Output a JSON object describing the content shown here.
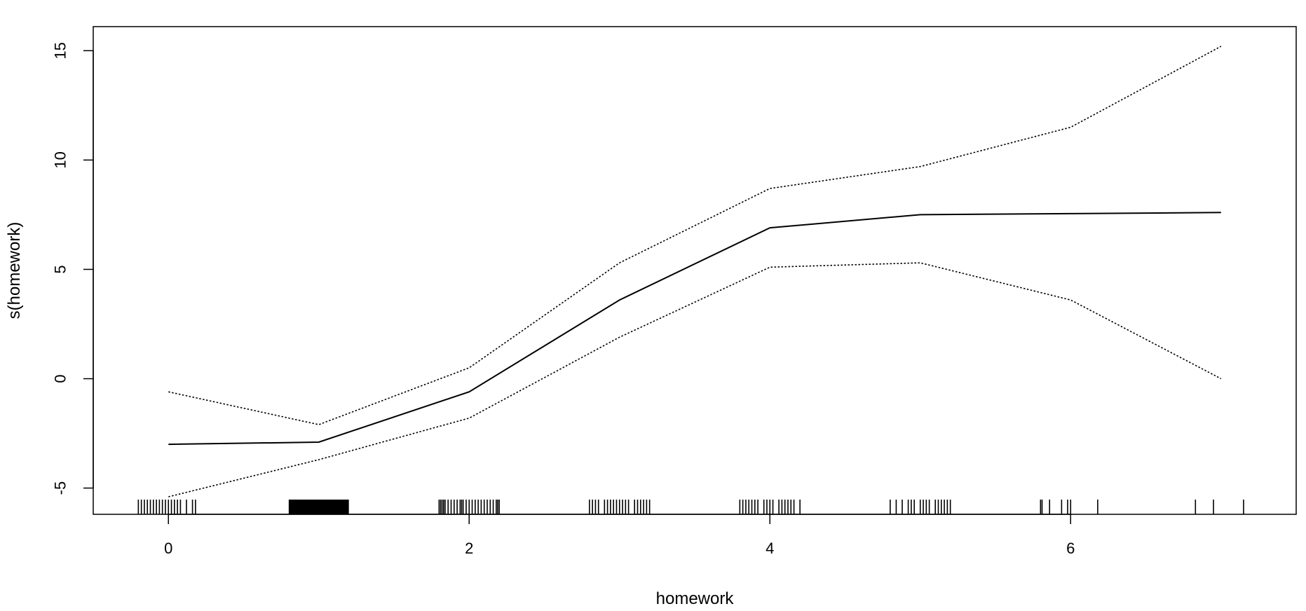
{
  "chart_data": {
    "type": "line",
    "title": "",
    "xlabel": "homework",
    "ylabel": "s(homework)",
    "xlim": [
      -0.5,
      7.5
    ],
    "ylim": [
      -6.2,
      16.1
    ],
    "xticks": [
      0,
      2,
      4,
      6
    ],
    "yticks": [
      -5,
      0,
      5,
      10,
      15
    ],
    "x": [
      0,
      1,
      2,
      3,
      4,
      5,
      6,
      7
    ],
    "series": [
      {
        "name": "",
        "style": "solid",
        "values": [
          -3.0,
          -2.9,
          -0.6,
          3.6,
          6.9,
          7.5,
          7.55,
          7.6
        ]
      },
      {
        "name": "",
        "style": "dotted",
        "values": [
          -0.6,
          -2.1,
          0.5,
          5.3,
          8.7,
          9.7,
          11.5,
          15.2
        ]
      },
      {
        "name": "",
        "style": "dotted",
        "values": [
          -5.4,
          -3.7,
          -1.8,
          1.9,
          5.1,
          5.3,
          3.6,
          0.0
        ]
      }
    ],
    "rug": {
      "solid_segments": [
        [
          0.8,
          1.2
        ]
      ],
      "ticks": [
        -0.2,
        -0.18,
        -0.16,
        -0.14,
        -0.12,
        -0.1,
        -0.08,
        -0.06,
        -0.04,
        -0.02,
        0,
        0.02,
        0.04,
        0.06,
        0.08,
        0.12,
        0.16,
        0.18,
        1.8,
        1.81,
        1.82,
        1.83,
        1.84,
        1.86,
        1.88,
        1.9,
        1.92,
        1.94,
        1.95,
        1.96,
        1.98,
        2.0,
        2.02,
        2.04,
        2.06,
        2.08,
        2.1,
        2.12,
        2.14,
        2.16,
        2.18,
        2.19,
        2.2,
        2.8,
        2.82,
        2.84,
        2.86,
        2.9,
        2.92,
        2.94,
        2.96,
        2.98,
        3.0,
        3.02,
        3.04,
        3.06,
        3.1,
        3.12,
        3.14,
        3.16,
        3.18,
        3.2,
        3.8,
        3.82,
        3.84,
        3.86,
        3.88,
        3.9,
        3.92,
        3.96,
        3.98,
        4.0,
        4.02,
        4.06,
        4.08,
        4.1,
        4.12,
        4.14,
        4.16,
        4.2,
        4.8,
        4.84,
        4.88,
        4.92,
        4.94,
        4.96,
        5.0,
        5.02,
        5.04,
        5.06,
        5.1,
        5.12,
        5.14,
        5.16,
        5.18,
        5.2,
        5.8,
        5.81,
        5.86,
        5.94,
        5.98,
        6.0,
        6.18,
        6.83,
        6.95,
        7.15
      ]
    }
  }
}
